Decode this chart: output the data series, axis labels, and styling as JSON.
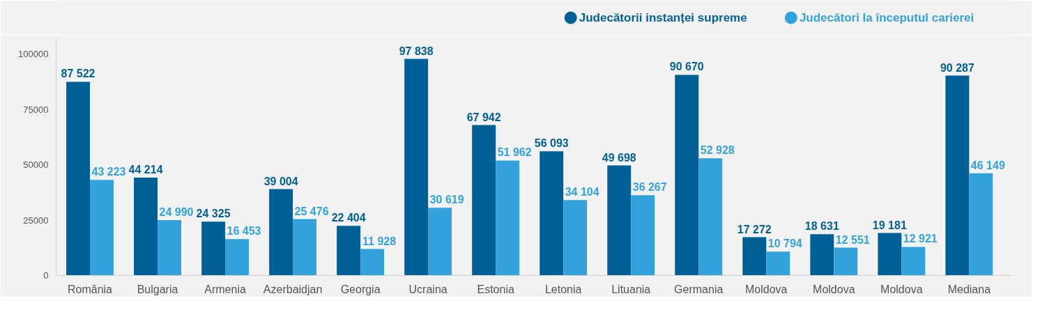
{
  "chart_data": {
    "type": "bar",
    "categories": [
      "România",
      "Bulgaria",
      "Armenia",
      "Azerbaidjan",
      "Georgia",
      "Ucraina",
      "Estonia",
      "Letonia",
      "Lituania",
      "Germania",
      "Moldova",
      "Moldova",
      "Moldova",
      "Mediana"
    ],
    "series": [
      {
        "name": "Judecătorii instanței supreme",
        "color": "#005f94",
        "values": [
          87522,
          44214,
          24325,
          39004,
          22404,
          97838,
          67942,
          56093,
          49698,
          90670,
          17272,
          18631,
          19181,
          90287
        ],
        "value_labels": [
          "87 522",
          "44 214",
          "24 325",
          "39 004",
          "22 404",
          "97 838",
          "67 942",
          "56 093",
          "49 698",
          "90 670",
          "17 272",
          "18 631",
          "19 181",
          "90 287"
        ]
      },
      {
        "name": "Judecători la începutul carierei",
        "color": "#33a2db",
        "values": [
          43223,
          24990,
          16453,
          25476,
          11928,
          30619,
          51962,
          34104,
          36267,
          52928,
          10794,
          12551,
          12921,
          46149
        ],
        "value_labels": [
          "43 223",
          "24 990",
          "16 453",
          "25 476",
          "11 928",
          "30 619",
          "51 962",
          "34 104",
          "36 267",
          "52 928",
          "10 794",
          "12 551",
          "12 921",
          "46 149"
        ]
      }
    ],
    "ylim": [
      0,
      107000
    ],
    "yticks": [
      0,
      25000,
      50000,
      75000,
      100000
    ],
    "grid": false,
    "legend": "top right"
  }
}
